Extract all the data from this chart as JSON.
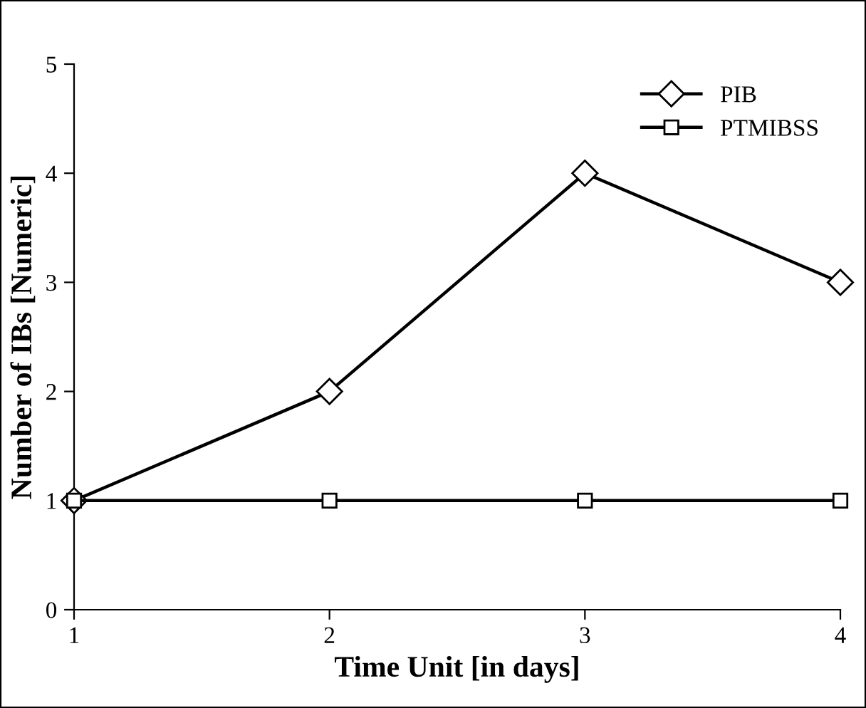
{
  "chart_data": {
    "type": "line",
    "xlabel": "Time Unit [in days]",
    "ylabel": "Number of IBs [Numeric]",
    "x": [
      1,
      2,
      3,
      4
    ],
    "series": [
      {
        "name": "PIB",
        "color": "#000000",
        "marker": "diamond",
        "values": [
          1,
          2,
          4,
          3
        ]
      },
      {
        "name": "PTMIBSS",
        "color": "#000000",
        "marker": "square",
        "values": [
          1,
          1,
          1,
          1
        ]
      }
    ],
    "xlim": [
      1,
      4
    ],
    "xticks": [
      1,
      2,
      3,
      4
    ],
    "ylim": [
      0,
      5
    ],
    "yticks": [
      0,
      1,
      2,
      3,
      4,
      5
    ],
    "grid": false,
    "legend": "top right"
  }
}
